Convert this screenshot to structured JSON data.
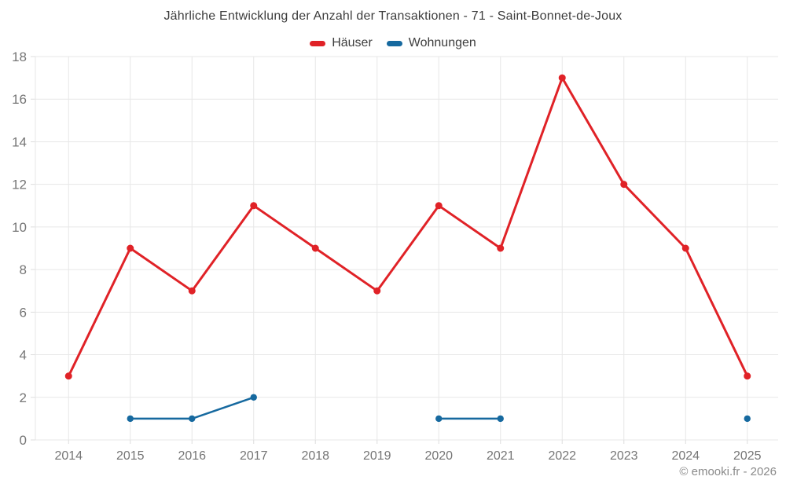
{
  "page": {
    "footer": "© emooki.fr - 2026"
  },
  "chart_data": {
    "type": "line",
    "title": "Jährliche Entwicklung der Anzahl der Transaktionen - 71 - Saint-Bonnet-de-Joux",
    "categories": [
      "2014",
      "2015",
      "2016",
      "2017",
      "2018",
      "2019",
      "2020",
      "2021",
      "2022",
      "2023",
      "2024",
      "2025"
    ],
    "series": [
      {
        "name": "Häuser",
        "color": "#e02227",
        "values": [
          3,
          9,
          7,
          11,
          9,
          7,
          11,
          9,
          17,
          12,
          9,
          3
        ]
      },
      {
        "name": "Wohnungen",
        "color": "#16699f",
        "values": [
          null,
          1,
          1,
          2,
          null,
          null,
          1,
          1,
          null,
          null,
          null,
          1
        ]
      }
    ],
    "xlabel": "",
    "ylabel": "",
    "ylim": [
      0,
      18
    ],
    "yticks": [
      0,
      2,
      4,
      6,
      8,
      10,
      12,
      14,
      16,
      18
    ],
    "grid": true,
    "legend_position": "top",
    "colors": {
      "background": "#ffffff",
      "grid": "#e7e7e7",
      "tick_mark": "#dddddd",
      "tick_text": "#757575",
      "title_text": "#3d3d3d",
      "footer_text": "#8a8a8a"
    }
  }
}
